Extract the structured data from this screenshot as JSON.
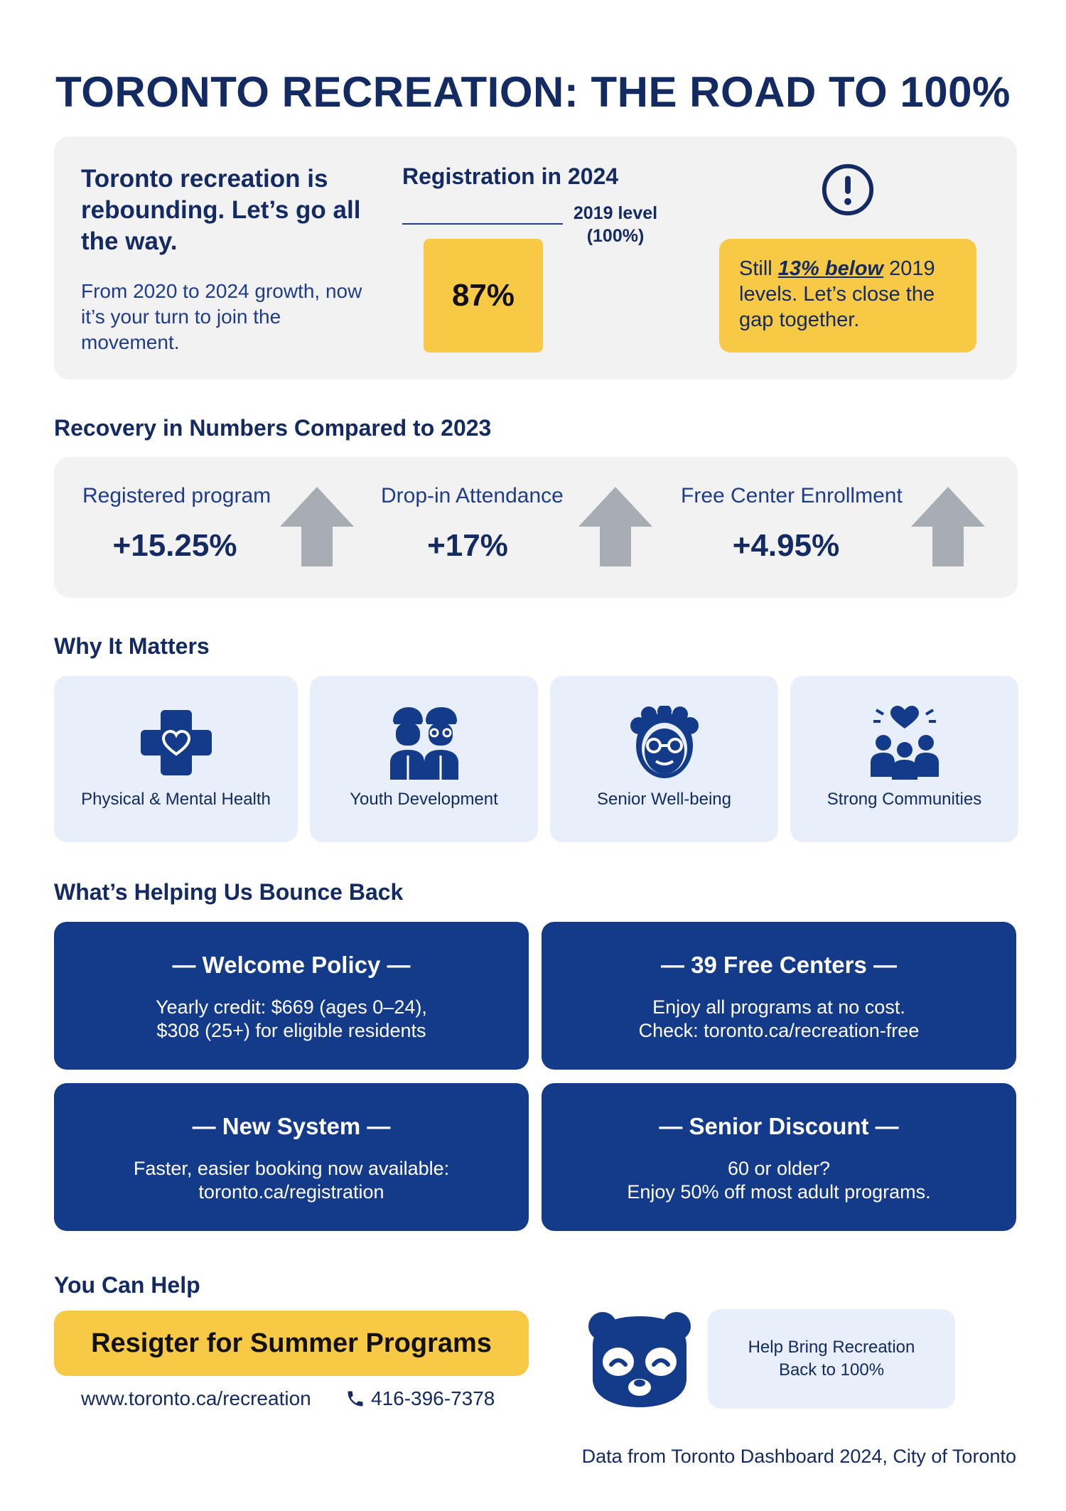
{
  "title": "TORONTO RECREATION: THE ROAD TO 100%",
  "hero": {
    "headline": "Toronto recreation is rebounding. Let’s go all the way.",
    "subtext": "From 2020 to 2024 growth, now it’s your turn to join the movement.",
    "chart_title": "Registration in 2024",
    "reference_label_line1": "2019 level",
    "reference_label_line2": "(100%)",
    "bar_value_label": "87%",
    "alert_icon": "exclamation-circle-icon",
    "note_prefix": "Still ",
    "note_emphasis": "13% below",
    "note_suffix": " 2019 levels. Let’s close the gap together."
  },
  "chart_data": {
    "type": "bar",
    "title": "Registration in 2024",
    "categories": [
      "2024"
    ],
    "values": [
      87
    ],
    "reference": {
      "label": "2019 level (100%)",
      "value": 100
    },
    "ylim": [
      0,
      100
    ]
  },
  "recovery": {
    "heading": "Recovery in Numbers Compared to 2023",
    "items": [
      {
        "label": "Registered program",
        "value": "+15.25%",
        "icon": "up-arrow-icon"
      },
      {
        "label": "Drop-in Attendance",
        "value": "+17%",
        "icon": "up-arrow-icon"
      },
      {
        "label": "Free Center Enrollment",
        "value": "+4.95%",
        "icon": "up-arrow-icon"
      }
    ]
  },
  "why": {
    "heading": "Why It Matters",
    "cards": [
      {
        "label": "Physical & Mental Health",
        "icon": "medical-cross-heart-icon"
      },
      {
        "label": "Youth Development",
        "icon": "youth-pair-icon"
      },
      {
        "label": "Senior Well-being",
        "icon": "senior-face-icon"
      },
      {
        "label": "Strong Communities",
        "icon": "community-heart-icon"
      }
    ]
  },
  "helping": {
    "heading": "What’s Helping Us Bounce Back",
    "cards": [
      {
        "title": "— Welcome Policy —",
        "line1": "Yearly credit: $669 (ages 0–24),",
        "line2": "$308 (25+) for eligible residents"
      },
      {
        "title": "— 39 Free Centers —",
        "line1": "Enjoy all programs at no cost.",
        "line2": "Check: toronto.ca/recreation-free"
      },
      {
        "title": "— New System —",
        "line1": "Faster, easier booking now available:",
        "line2": "toronto.ca/registration"
      },
      {
        "title": "— Senior Discount —",
        "line1": "60 or older?",
        "line2": "Enjoy 50% off most adult programs."
      }
    ]
  },
  "help": {
    "heading": "You Can Help",
    "cta_label": "Resigter for Summer Programs",
    "website": "www.toronto.ca/recreation",
    "phone_icon": "phone-icon",
    "phone": "416-396-7378",
    "mascot_icon": "panda-mascot-icon",
    "badge_line1": "Help Bring Recreation",
    "badge_line2": "Back to 100%"
  },
  "source": "Data from Toronto Dashboard 2024, City of Toronto",
  "colors": {
    "navy": "#132a63",
    "blue_card": "#143a8a",
    "yellow": "#f8c944",
    "light_gray": "#f2f2f2",
    "light_blue": "#e8effb",
    "arrow_gray": "#a8acb3"
  }
}
